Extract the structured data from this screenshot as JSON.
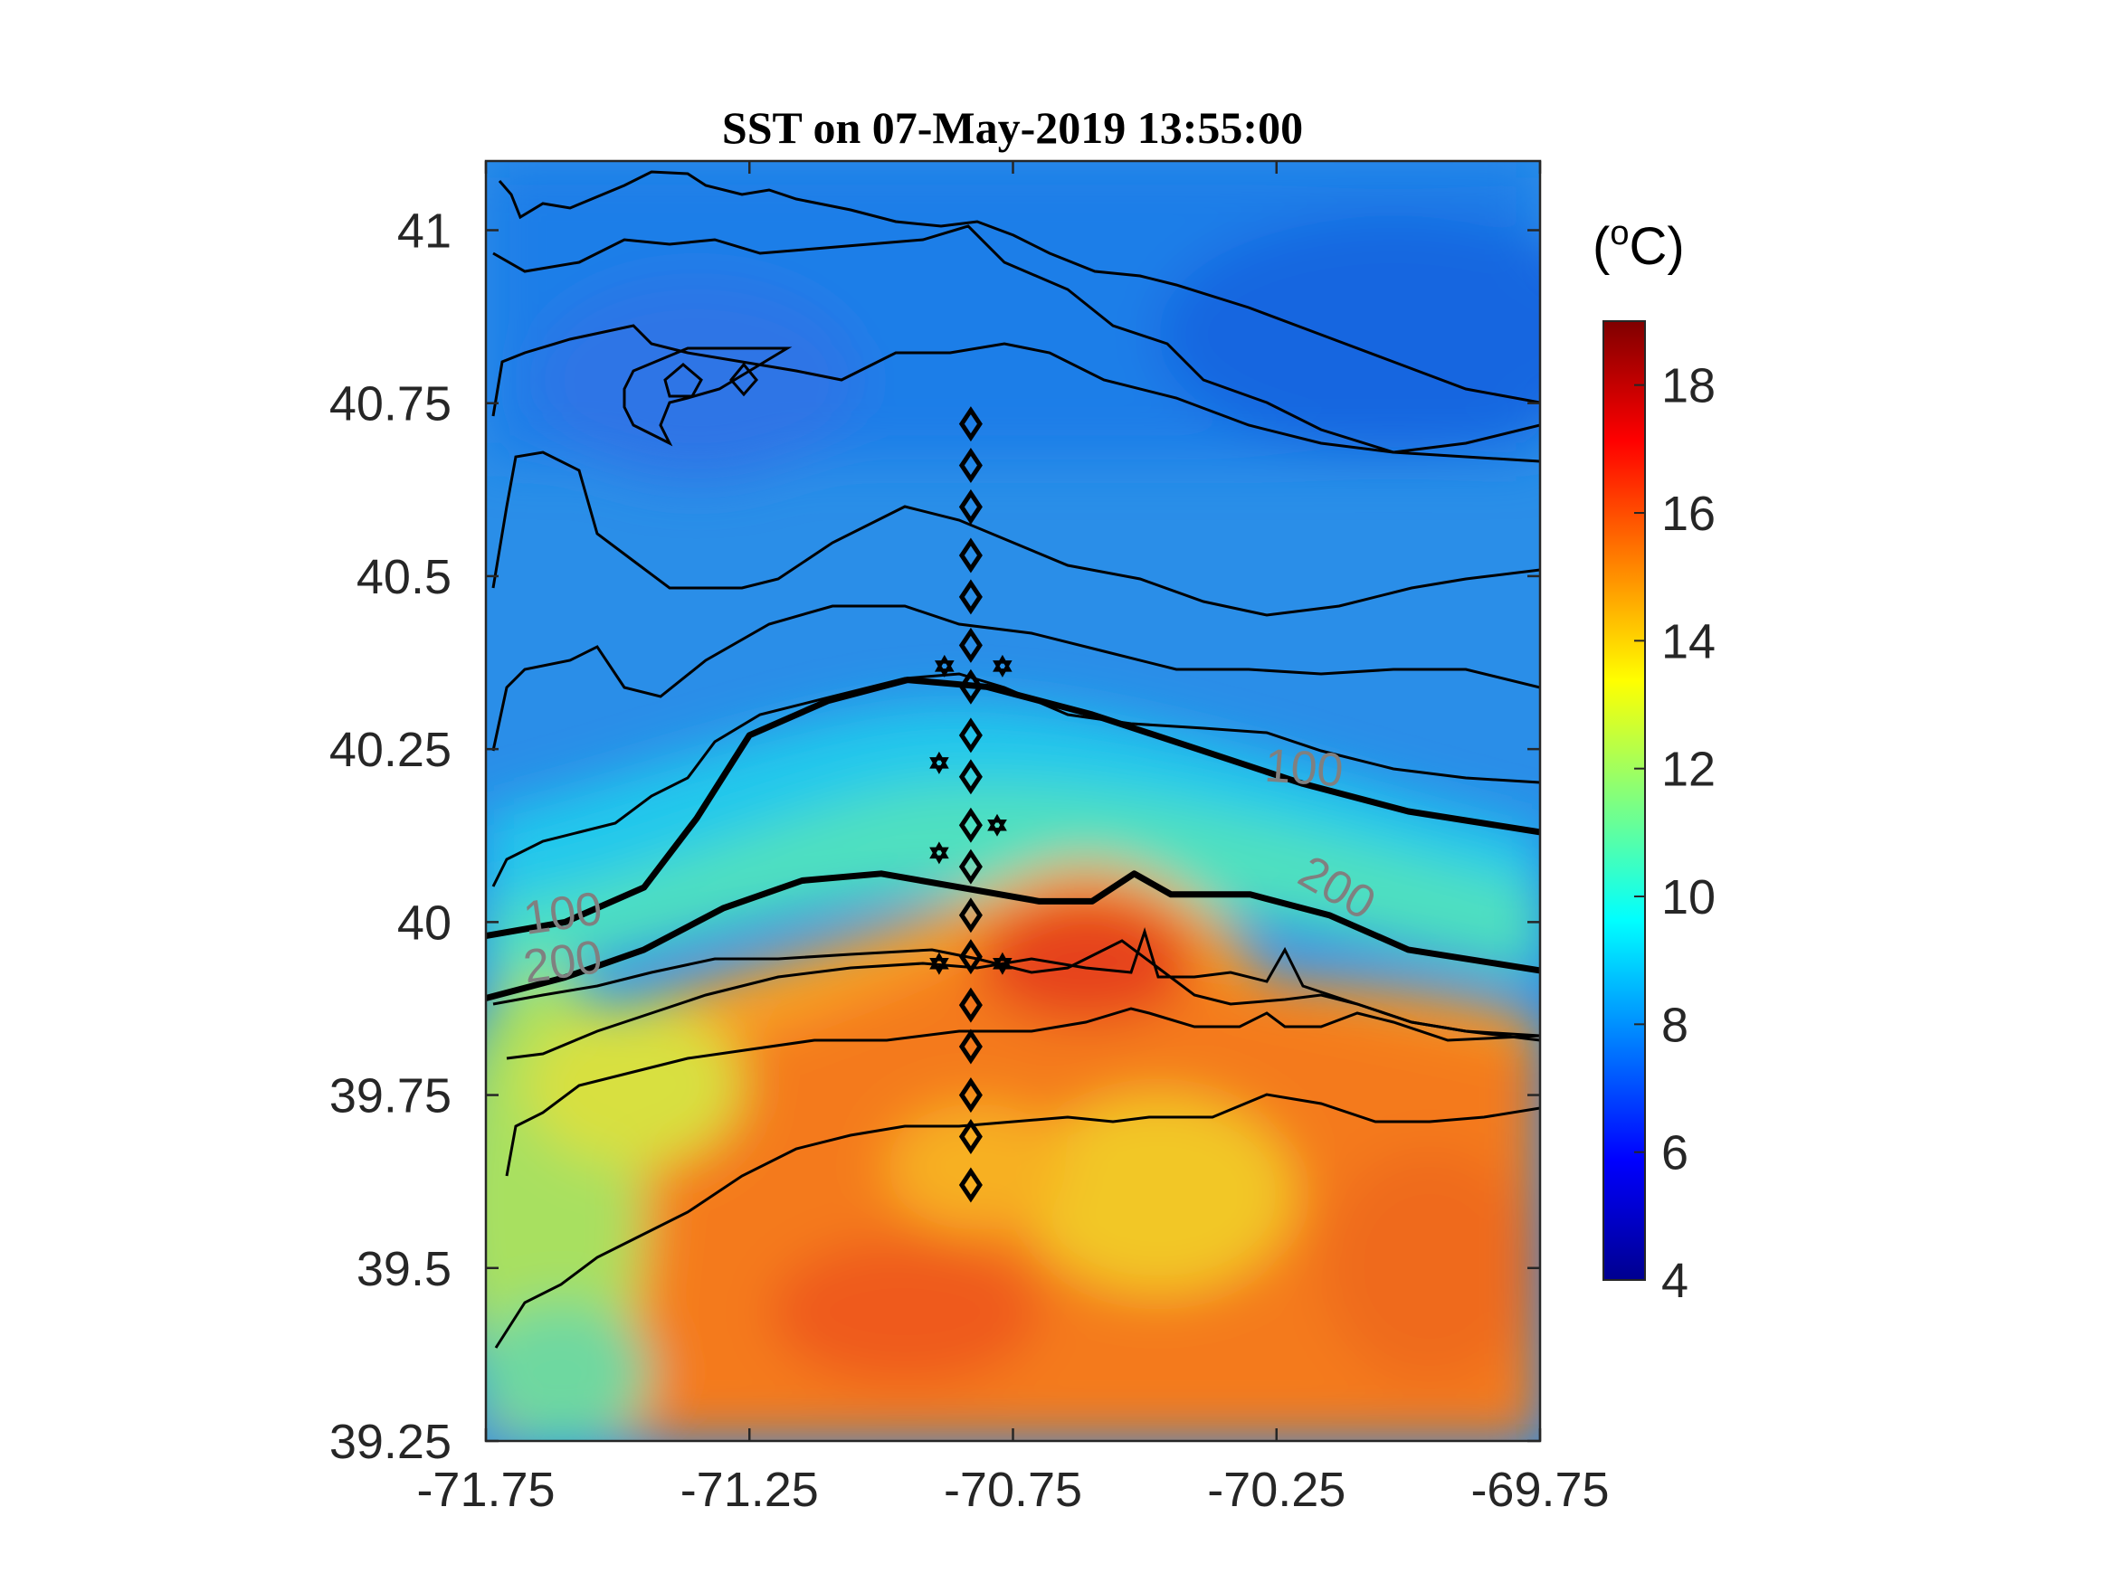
{
  "title": "SST on 07-May-2019 13:55:00",
  "colorbar": {
    "unit_open": "(",
    "unit_sup": "o",
    "unit_main": "C)",
    "ticks": [
      "4",
      "6",
      "8",
      "10",
      "12",
      "14",
      "16",
      "18"
    ],
    "tick_values": [
      4,
      6,
      8,
      10,
      12,
      14,
      16,
      18
    ],
    "range": [
      4,
      19
    ],
    "colormap": "jet"
  },
  "chart_data": {
    "type": "heatmap",
    "title": "SST on 07-May-2019 13:55:00",
    "xlim": [
      -71.75,
      -69.75
    ],
    "ylim": [
      39.25,
      41.1
    ],
    "x_tick_labels": [
      "-71.75",
      "-71.25",
      "-70.75",
      "-70.25",
      "-69.75"
    ],
    "x_ticks": [
      -71.75,
      -71.25,
      -70.75,
      -70.25,
      -69.75
    ],
    "y_tick_labels": [
      "39.25",
      "39.5",
      "39.75",
      "40",
      "40.25",
      "40.5",
      "40.75",
      "41"
    ],
    "y_ticks": [
      39.25,
      39.5,
      39.75,
      40.0,
      40.25,
      40.5,
      40.75,
      41.0
    ],
    "value_unit": "°C",
    "clim": [
      4,
      19
    ],
    "isobath_labels": [
      {
        "text": "100",
        "lon": -71.6,
        "lat": 39.99
      },
      {
        "text": "200",
        "lon": -71.6,
        "lat": 39.92
      },
      {
        "text": "100",
        "lon": -70.2,
        "lat": 40.2
      },
      {
        "text": "200",
        "lon": -70.15,
        "lat": 40.03
      }
    ],
    "isobaths": [
      {
        "name": "100",
        "points": [
          [
            -71.75,
            39.98
          ],
          [
            -71.6,
            40.0
          ],
          [
            -71.45,
            40.05
          ],
          [
            -71.35,
            40.15
          ],
          [
            -71.25,
            40.27
          ],
          [
            -71.1,
            40.32
          ],
          [
            -70.95,
            40.35
          ],
          [
            -70.8,
            40.34
          ],
          [
            -70.6,
            40.3
          ],
          [
            -70.4,
            40.25
          ],
          [
            -70.2,
            40.2
          ],
          [
            -70.0,
            40.16
          ],
          [
            -69.75,
            40.13
          ]
        ]
      },
      {
        "name": "200",
        "points": [
          [
            -71.75,
            39.89
          ],
          [
            -71.6,
            39.92
          ],
          [
            -71.45,
            39.96
          ],
          [
            -71.3,
            40.02
          ],
          [
            -71.15,
            40.06
          ],
          [
            -71.0,
            40.07
          ],
          [
            -70.85,
            40.05
          ],
          [
            -70.7,
            40.03
          ],
          [
            -70.6,
            40.03
          ],
          [
            -70.52,
            40.07
          ],
          [
            -70.45,
            40.04
          ],
          [
            -70.3,
            40.04
          ],
          [
            -70.15,
            40.01
          ],
          [
            -70.0,
            39.96
          ],
          [
            -69.75,
            39.93
          ]
        ]
      }
    ],
    "stations": {
      "diamonds": {
        "lon": -70.83,
        "lats": [
          40.72,
          40.66,
          40.6,
          40.53,
          40.47,
          40.4,
          40.34,
          40.27,
          40.21,
          40.14,
          40.08,
          40.01,
          39.95,
          39.88,
          39.82,
          39.75,
          39.69,
          39.62
        ]
      },
      "stars": [
        [
          -70.88,
          40.37
        ],
        [
          -70.77,
          40.37
        ],
        [
          -70.89,
          40.23
        ],
        [
          -70.78,
          40.14
        ],
        [
          -70.89,
          40.1
        ],
        [
          -70.89,
          39.94
        ],
        [
          -70.77,
          39.94
        ]
      ]
    }
  }
}
